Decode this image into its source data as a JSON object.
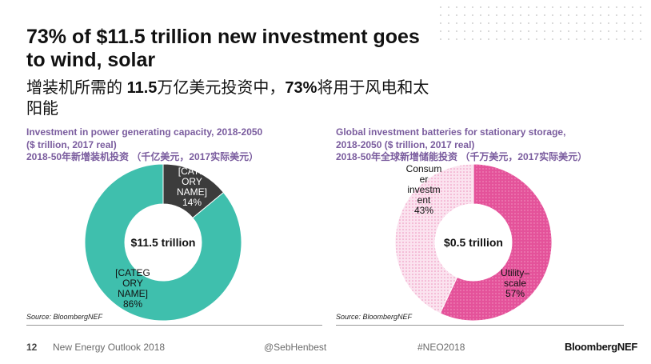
{
  "slide": {
    "title": "73% of $11.5 trillion new investment goes to wind, solar",
    "subtitle_parts": [
      "增装机所需的 ",
      "11.5",
      "万亿美元投资中，",
      "73%",
      "将用于风电和太阳能"
    ],
    "page_number": "12",
    "footer_title": "New Energy Outlook 2018",
    "twitter": "@SebHenbest",
    "hashtag": "#NEO2018",
    "logo": "BloombergNEF"
  },
  "chart_data": [
    {
      "type": "pie",
      "title_lines": [
        "Investment in power generating capacity, 2018-2050",
        "($ trillion, 2017 real)",
        "2018-50年新增装机投资 （千亿美元，2017实际美元）"
      ],
      "center_label": "$11.5 trillion",
      "slices": [
        {
          "label_lines": [
            "[CATEG",
            "ORY",
            "NAME]",
            "86%"
          ],
          "value": 86,
          "color": "#3fbfad"
        },
        {
          "label_lines": [
            "[CATE",
            "ORY",
            "NAME]",
            "14%"
          ],
          "value": 14,
          "color": "#3c3c3c"
        }
      ],
      "source": "Source: BloombergNEF"
    },
    {
      "type": "pie",
      "title_lines": [
        "Global investment batteries for stationary storage,",
        "2018-2050 ($ trillion, 2017 real)",
        "2018-50年全球新增储能投资 （千万美元，2017实际美元）"
      ],
      "center_label": "$0.5 trillion",
      "slices": [
        {
          "label_lines": [
            "Utility–",
            "scale",
            "57%"
          ],
          "value": 57,
          "color": "#e0569a"
        },
        {
          "label_lines": [
            "Consum",
            "er",
            "investm",
            "ent",
            "43%"
          ],
          "value": 43,
          "color": "#f6c6dd"
        }
      ],
      "source": "Source: BloombergNEF"
    }
  ]
}
